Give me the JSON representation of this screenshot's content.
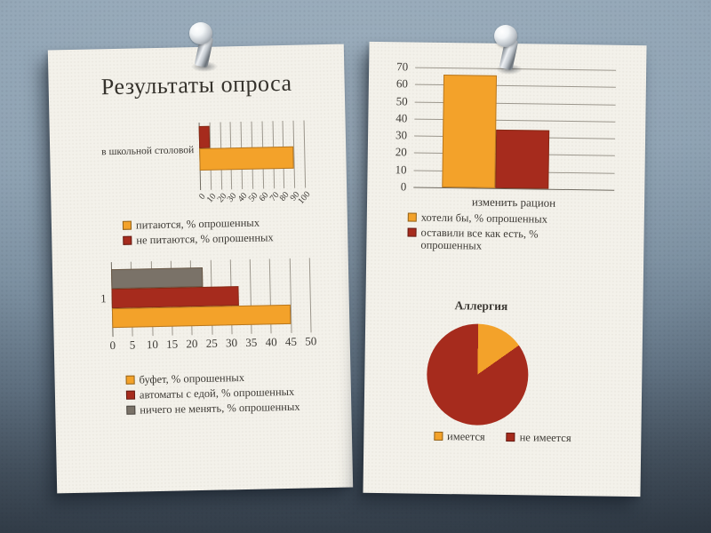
{
  "slide": {
    "title": "Результаты опроса"
  },
  "colors": {
    "orange": "#F3A22A",
    "red": "#A62B1D",
    "gray": "#7A7268"
  },
  "chart_data": [
    {
      "id": "cafeteria",
      "type": "bar",
      "orientation": "horizontal",
      "categories": [
        "в школьной столовой"
      ],
      "series": [
        {
          "name": "питаются, % опрошенных",
          "color_key": "orange",
          "values": [
            90
          ]
        },
        {
          "name": "не питаются, % опрошенных",
          "color_key": "red",
          "values": [
            10
          ]
        }
      ],
      "xlim": [
        0,
        100
      ],
      "xticks": [
        0,
        10,
        20,
        30,
        40,
        50,
        60,
        70,
        80,
        90,
        100
      ],
      "tick_label_rotation_deg": -48,
      "grid": true,
      "legend_position": "bottom"
    },
    {
      "id": "changes",
      "type": "bar",
      "orientation": "horizontal",
      "categories": [
        "1"
      ],
      "series": [
        {
          "name": "буфет, % опрошенных",
          "color_key": "orange",
          "values": [
            45
          ]
        },
        {
          "name": "автоматы с едой, % опрошенных",
          "color_key": "red",
          "values": [
            32
          ]
        },
        {
          "name": "ничего не менять, % опрошенных",
          "color_key": "gray",
          "values": [
            23
          ]
        }
      ],
      "xlim": [
        0,
        50
      ],
      "xticks": [
        0,
        5,
        10,
        15,
        20,
        25,
        30,
        35,
        40,
        45,
        50
      ],
      "grid": true,
      "legend_position": "bottom"
    },
    {
      "id": "ration",
      "type": "bar",
      "orientation": "vertical",
      "categories": [
        "изменить рацион"
      ],
      "series": [
        {
          "name": "хотели бы, % опрошенных",
          "color_key": "orange",
          "values": [
            66
          ]
        },
        {
          "name": "оставили все как есть, % опрошенных",
          "color_key": "red",
          "values": [
            34
          ]
        }
      ],
      "ylim": [
        0,
        70
      ],
      "yticks": [
        0,
        10,
        20,
        30,
        40,
        50,
        60,
        70
      ],
      "grid": true,
      "legend_position": "bottom"
    },
    {
      "id": "allergy",
      "type": "pie",
      "title": "Аллергия",
      "labels": [
        "имеется",
        "не имеется"
      ],
      "values": [
        15,
        85
      ],
      "color_keys": [
        "orange",
        "red"
      ],
      "start_angle_deg": 0,
      "clockwise": true,
      "legend_position": "bottom"
    }
  ]
}
